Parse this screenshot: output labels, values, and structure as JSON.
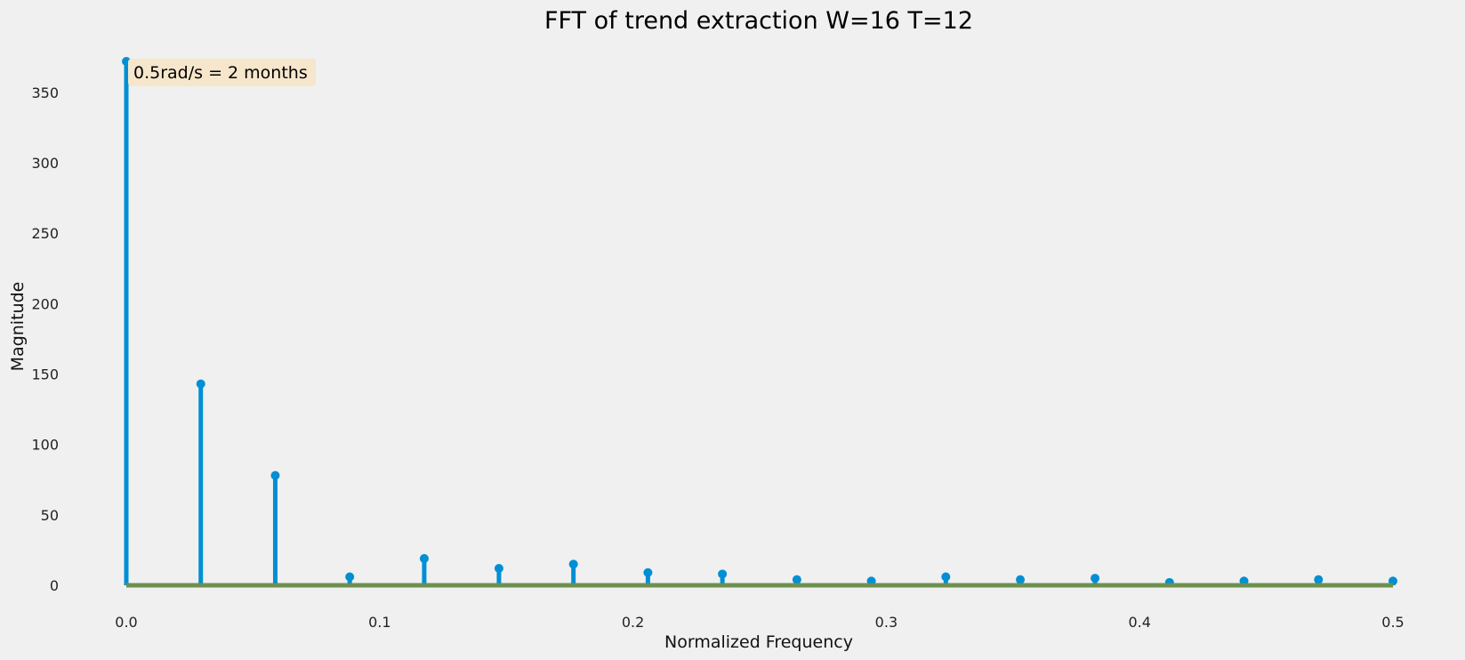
{
  "chart_data": {
    "type": "stem",
    "title": "FFT of trend extraction W=16 T=12",
    "xlabel": "Normalized Frequency",
    "ylabel": "Magnitude",
    "xlim": [
      0.0,
      0.5
    ],
    "ylim": [
      0,
      372
    ],
    "x_ticks": [
      "0.0",
      "0.1",
      "0.2",
      "0.3",
      "0.4",
      "0.5"
    ],
    "y_ticks": [
      "0",
      "50",
      "100",
      "150",
      "200",
      "250",
      "300",
      "350"
    ],
    "grid": false,
    "annotation": "0.5rad/s = 2 months",
    "stem_color": "#008fd5",
    "baseline_color": "#6d904f",
    "annotation_bg": "#f5e6cc",
    "points": [
      {
        "x": 0.0,
        "y": 372
      },
      {
        "x": 0.0294,
        "y": 143
      },
      {
        "x": 0.0588,
        "y": 78
      },
      {
        "x": 0.0882,
        "y": 6
      },
      {
        "x": 0.1176,
        "y": 19
      },
      {
        "x": 0.1471,
        "y": 12
      },
      {
        "x": 0.1765,
        "y": 15
      },
      {
        "x": 0.2059,
        "y": 9
      },
      {
        "x": 0.2353,
        "y": 8
      },
      {
        "x": 0.2647,
        "y": 4
      },
      {
        "x": 0.2941,
        "y": 3
      },
      {
        "x": 0.3235,
        "y": 6
      },
      {
        "x": 0.3529,
        "y": 4
      },
      {
        "x": 0.3824,
        "y": 5
      },
      {
        "x": 0.4118,
        "y": 2
      },
      {
        "x": 0.4412,
        "y": 3
      },
      {
        "x": 0.4706,
        "y": 4
      },
      {
        "x": 0.5,
        "y": 3
      }
    ]
  }
}
